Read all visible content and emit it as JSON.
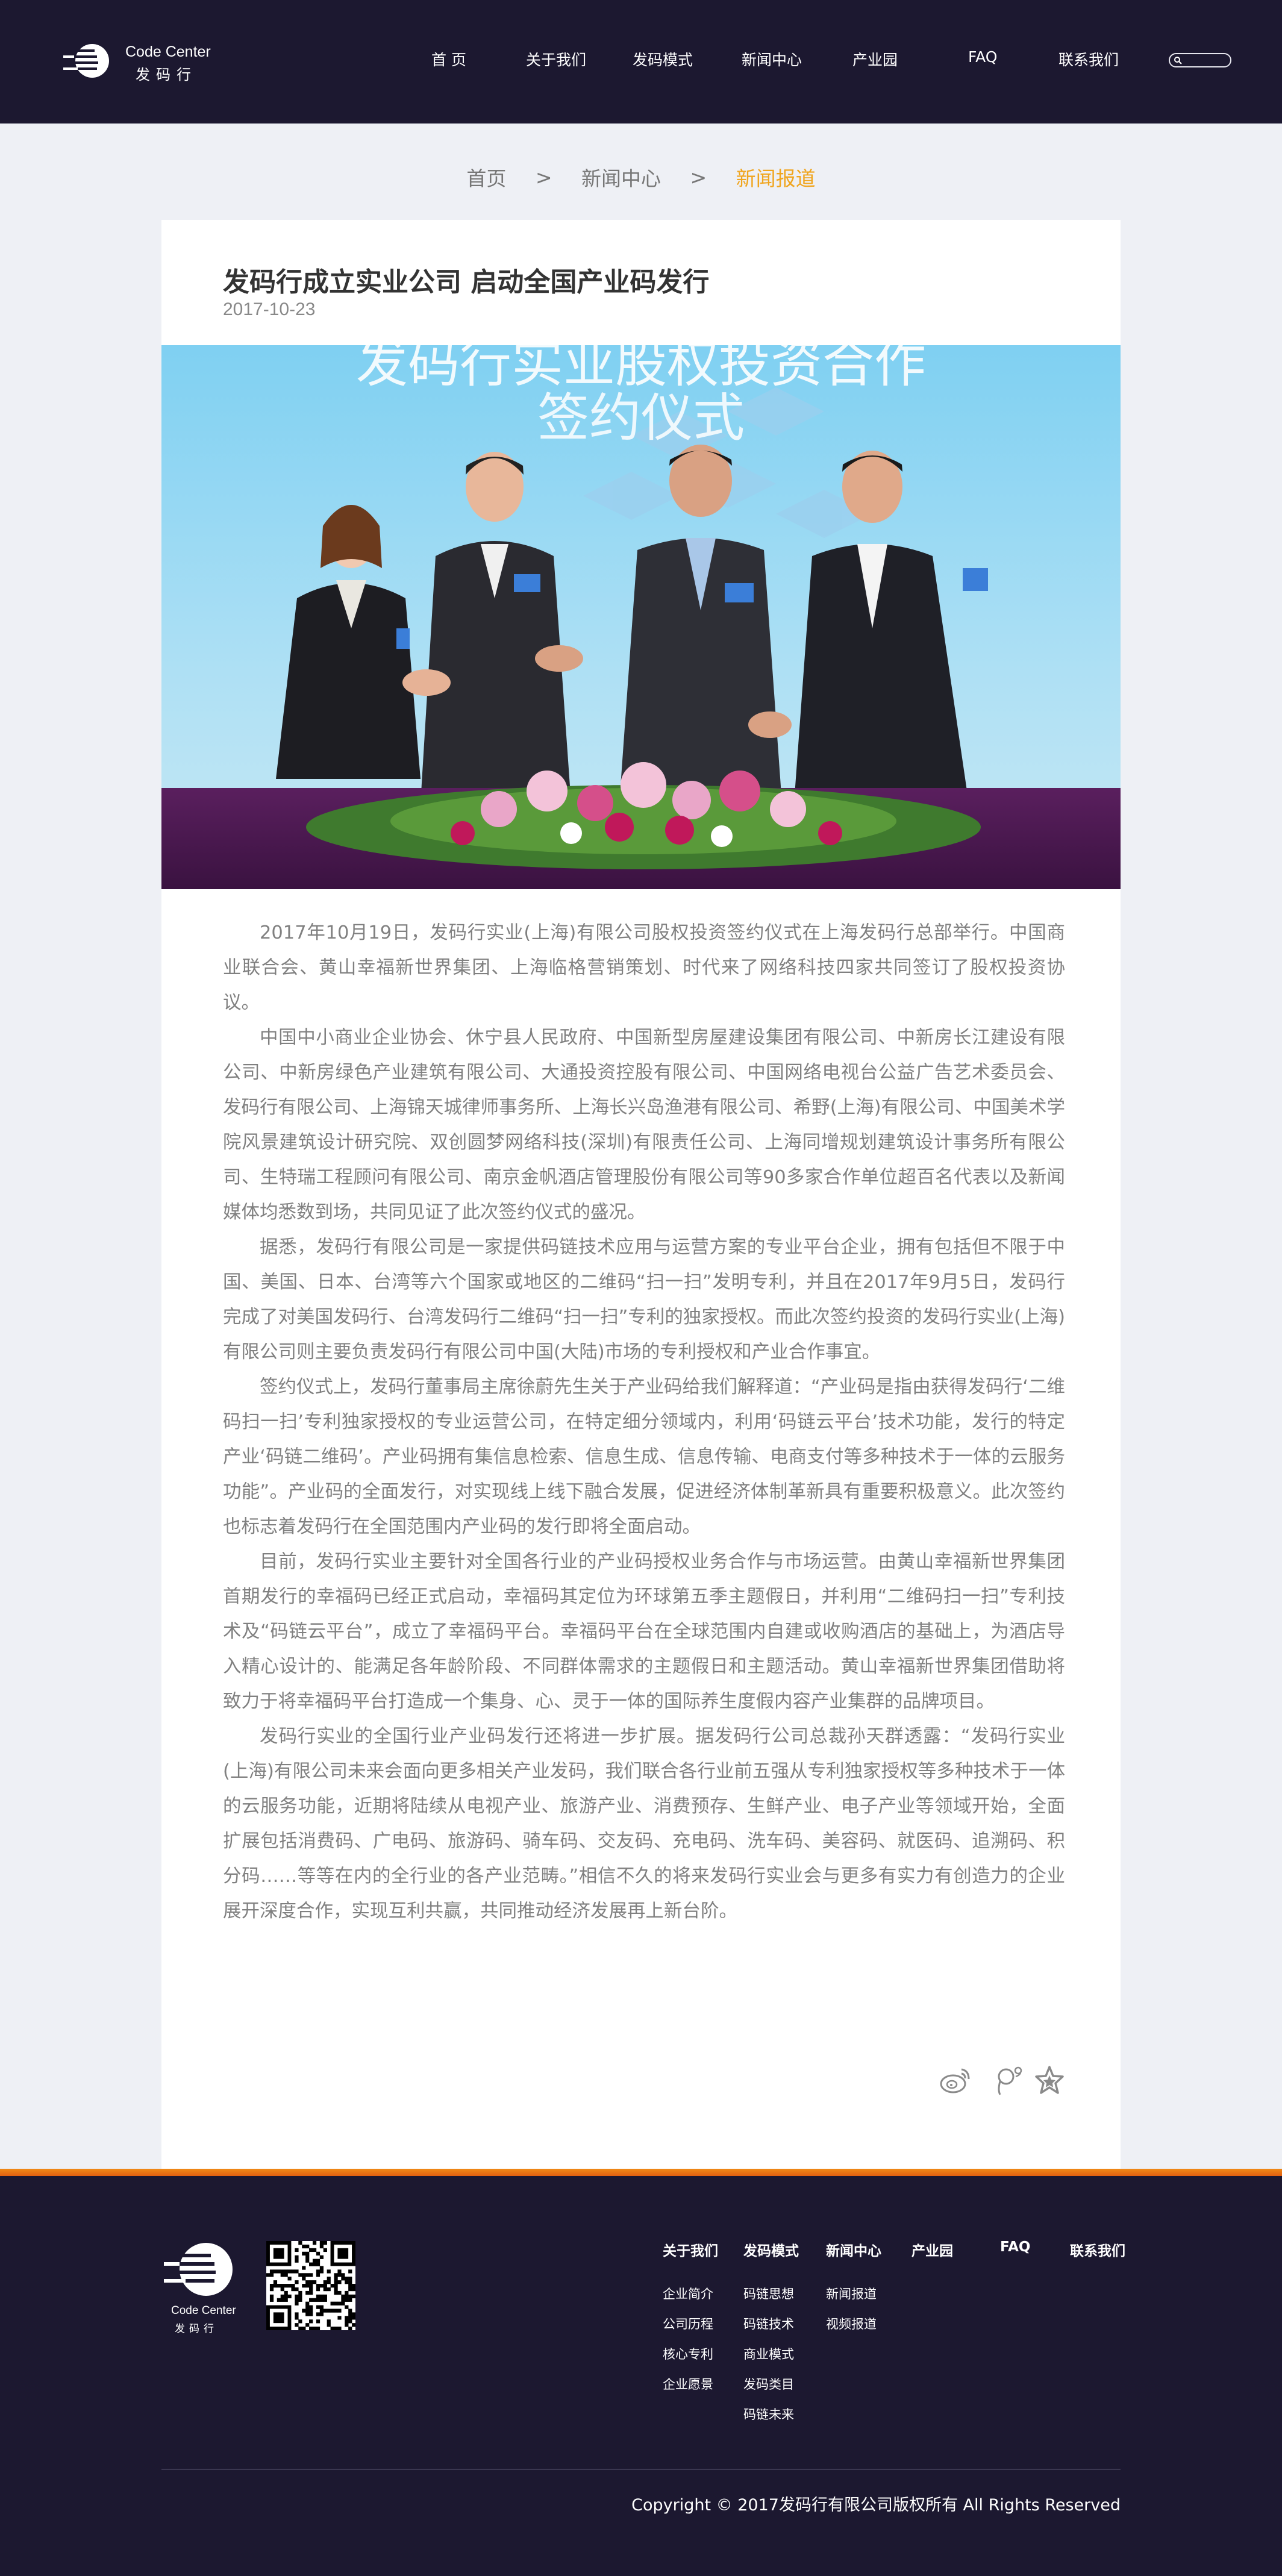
{
  "header": {
    "logo_en": "Code Center",
    "logo_cn": "发码行",
    "nav": [
      {
        "label": "首 页"
      },
      {
        "label": "关于我们"
      },
      {
        "label": "发码模式"
      },
      {
        "label": "新闻中心"
      },
      {
        "label": "产业园"
      },
      {
        "label": "FAQ"
      },
      {
        "label": "联系我们"
      }
    ],
    "search_icon": "search-icon"
  },
  "breadcrumb": {
    "items": [
      "首页",
      "新闻中心",
      "新闻报道"
    ],
    "separator": ">",
    "current_color": "#f0a51e"
  },
  "article": {
    "title": "发码行成立实业公司 启动全国产业码发行",
    "date": "2017-10-23",
    "photo_banner": [
      "发码行实业股权投资合作",
      "签约仪式"
    ],
    "paragraphs": [
      "2017年10月19日，发码行实业(上海)有限公司股权投资签约仪式在上海发码行总部举行。中国商业联合会、黄山幸福新世界集团、上海临格营销策划、时代来了网络科技四家共同签订了股权投资协议。",
      "中国中小商业企业协会、休宁县人民政府、中国新型房屋建设集团有限公司、中新房长江建设有限公司、中新房绿色产业建筑有限公司、大通投资控股有限公司、中国网络电视台公益广告艺术委员会、发码行有限公司、上海锦天城律师事务所、上海长兴岛渔港有限公司、希野(上海)有限公司、中国美术学院风景建筑设计研究院、双创圆梦网络科技(深圳)有限责任公司、上海同增规划建筑设计事务所有限公司、生特瑞工程顾问有限公司、南京金帆酒店管理股份有限公司等90多家合作单位超百名代表以及新闻媒体均悉数到场，共同见证了此次签约仪式的盛况。",
      "据悉，发码行有限公司是一家提供码链技术应用与运营方案的专业平台企业，拥有包括但不限于中国、美国、日本、台湾等六个国家或地区的二维码“扫一扫”发明专利，并且在2017年9月5日，发码行完成了对美国发码行、台湾发码行二维码“扫一扫”专利的独家授权。而此次签约投资的发码行实业(上海)有限公司则主要负责发码行有限公司中国(大陆)市场的专利授权和产业合作事宜。",
      "签约仪式上，发码行董事局主席徐蔚先生关于产业码给我们解释道：“产业码是指由获得发码行‘二维码扫一扫’专利独家授权的专业运营公司，在特定细分领域内，利用‘码链云平台’技术功能，发行的特定产业‘码链二维码’。产业码拥有集信息检索、信息生成、信息传输、电商支付等多种技术于一体的云服务功能”。产业码的全面发行，对实现线上线下融合发展，促进经济体制革新具有重要积极意义。此次签约也标志着发码行在全国范围内产业码的发行即将全面启动。",
      "目前，发码行实业主要针对全国各行业的产业码授权业务合作与市场运营。由黄山幸福新世界集团首期发行的幸福码已经正式启动，幸福码其定位为环球第五季主题假日，并利用“二维码扫一扫”专利技术及“码链云平台”，成立了幸福码平台。幸福码平台在全球范围内自建或收购酒店的基础上，为酒店导入精心设计的、能满足各年龄阶段、不同群体需求的主题假日和主题活动。黄山幸福新世界集团借助将致力于将幸福码平台打造成一个集身、心、灵于一体的国际养生度假内容产业集群的品牌项目。",
      "发码行实业的全国行业产业码发行还将进一步扩展。据发码行公司总裁孙天群透露：“发码行实业(上海)有限公司未来会面向更多相关产业发码，我们联合各行业前五强从专利独家授权等多种技术于一体的云服务功能，近期将陆续从电视产业、旅游产业、消费预存、生鲜产业、电子产业等领域开始，全面扩展包括消费码、广电码、旅游码、骑车码、交友码、充电码、洗车码、美容码、就医码、追溯码、积分码……等等在内的全行业的各产业范畴。”相信不久的将来发码行实业会与更多有实力有创造力的企业展开深度合作，实现互利共赢，共同推动经济发展再上新台阶。"
    ],
    "share_icons": [
      "weibo-icon",
      "tencent-weibo-icon",
      "favorite-star-icon"
    ]
  },
  "footer": {
    "logo_en": "Code Center",
    "logo_cn": "发码行",
    "columns": [
      {
        "heading": "关于我们",
        "links": [
          "企业简介",
          "公司历程",
          "核心专利",
          "企业愿景"
        ]
      },
      {
        "heading": "发码模式",
        "links": [
          "码链思想",
          "码链技术",
          "商业模式",
          "发码类目",
          "码链未来"
        ]
      },
      {
        "heading": "新闻中心",
        "links": [
          "新闻报道",
          "视频报道"
        ]
      },
      {
        "heading": "产业园",
        "links": []
      },
      {
        "heading": "FAQ",
        "links": []
      },
      {
        "heading": "联系我们",
        "links": []
      }
    ],
    "copyright": "Copyright  ©  2017发码行有限公司版权所有 All Rights Reserved"
  },
  "colors": {
    "header_bg": "#1c1830",
    "accent_orange": "#f08a17",
    "page_bg": "#eef0f5"
  }
}
